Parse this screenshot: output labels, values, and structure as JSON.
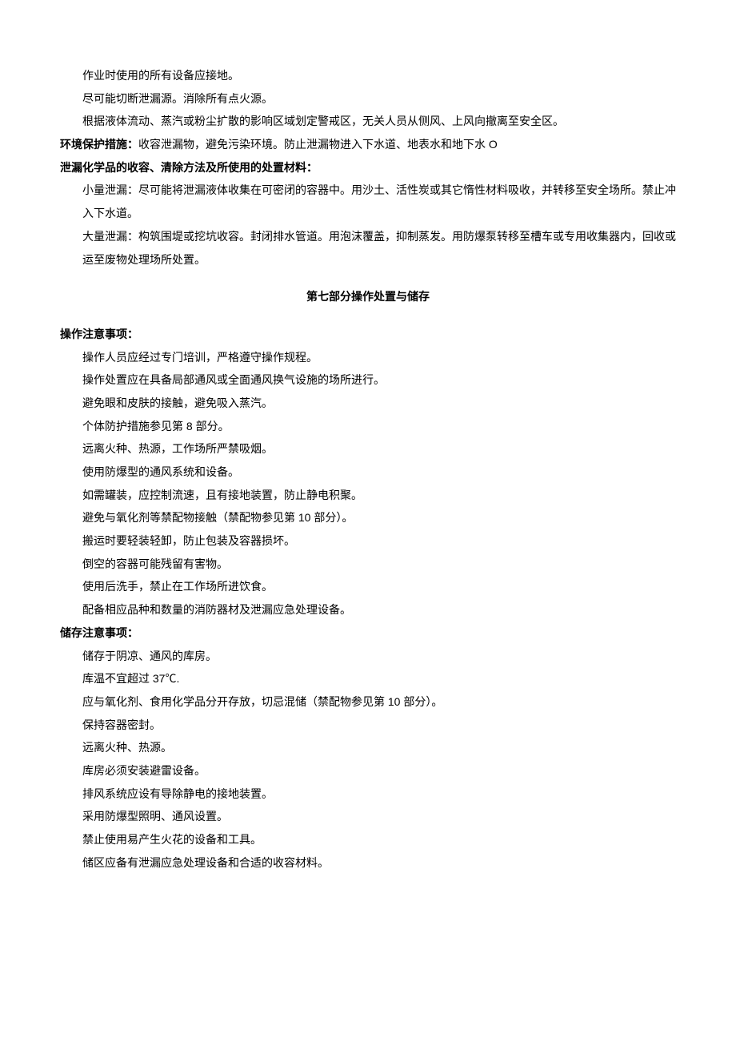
{
  "top_block": {
    "lines": [
      "作业时使用的所有设备应接地。",
      "尽可能切断泄漏源。消除所有点火源。",
      "根据液体流动、蒸汽或粉尘扩散的影响区域划定警戒区，无关人员从侧风、上风向撤离至安全区。"
    ]
  },
  "env_protection": {
    "label": "环境保护措施：",
    "text": "收容泄漏物，避免污染环境。防止泄漏物进入下水道、地表水和地下水 O"
  },
  "spill_cleanup": {
    "label": "泄漏化学品的收容、清除方法及所使用的处置材料：",
    "paragraphs": [
      "小量泄漏：尽可能将泄漏液体收集在可密闭的容器中。用沙土、活性炭或其它惰性材料吸收，并转移至安全场所。禁止冲入下水道。",
      "大量泄漏：构筑围堤或挖坑收容。封闭排水管道。用泡沫覆盖，抑制蒸发。用防爆泵转移至槽车或专用收集器内，回收或运至废物处理场所处置。"
    ]
  },
  "section7": {
    "title": "第七部分操作处置与储存",
    "handling": {
      "label": "操作注意事项：",
      "items": [
        "操作人员应经过专门培训，严格遵守操作规程。",
        "操作处置应在具备局部通风或全面通风换气设施的场所进行。",
        "避免眼和皮肤的接触，避免吸入蒸汽。",
        "个体防护措施参见第 8 部分。",
        "远离火种、热源，工作场所严禁吸烟。",
        "使用防爆型的通风系统和设备。",
        "如需罐装，应控制流速，且有接地装置，防止静电积聚。",
        "避免与氧化剂等禁配物接触（禁配物参见第 10 部分）。",
        "搬运时要轻装轻卸，防止包装及容器损坏。",
        "倒空的容器可能残留有害物。",
        "使用后洗手，禁止在工作场所进饮食。",
        "配备相应品种和数量的消防器材及泄漏应急处理设备。"
      ]
    },
    "storage": {
      "label": "储存注意事项：",
      "items": [
        "储存于阴凉、通风的库房。",
        "库温不宜超过 37℃.",
        "应与氧化剂、食用化学品分开存放，切忌混储（禁配物参见第 10 部分）。",
        "保持容器密封。",
        "远离火种、热源。",
        "库房必须安装避雷设备。",
        "排风系统应设有导除静电的接地装置。",
        "采用防爆型照明、通风设置。",
        "禁止使用易产生火花的设备和工具。",
        "储区应备有泄漏应急处理设备和合适的收容材料。"
      ]
    }
  }
}
